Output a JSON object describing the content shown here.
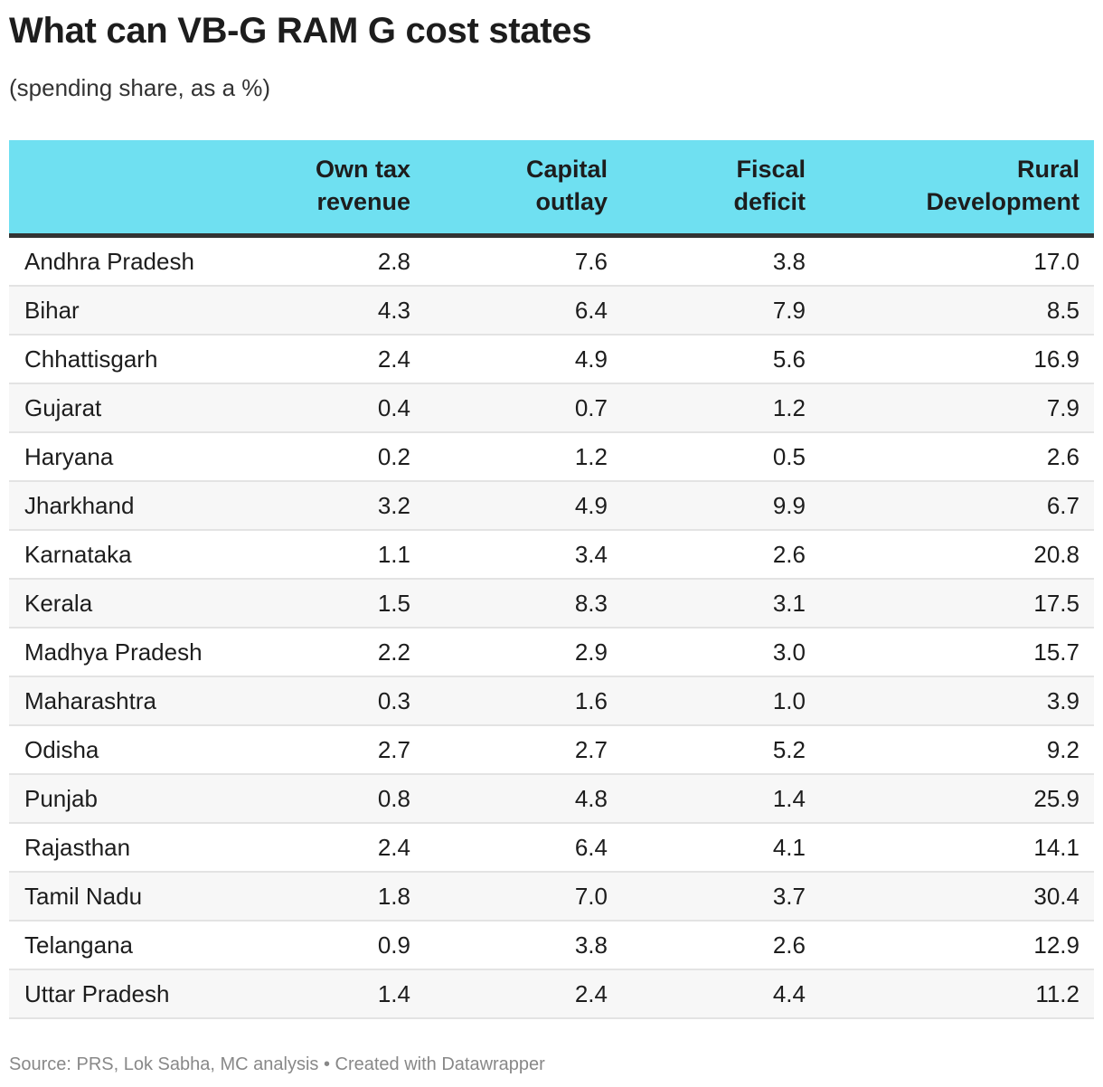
{
  "header": {
    "title": "What can VB-G RAM G cost states",
    "subtitle": "(spending share, as a %)"
  },
  "table": {
    "columns": [
      [
        "Own tax",
        "revenue"
      ],
      [
        "Capital",
        "outlay"
      ],
      [
        "Fiscal",
        "deficit"
      ],
      [
        "Rural",
        "Development"
      ]
    ],
    "rows": [
      [
        "Andhra Pradesh",
        "2.8",
        "7.6",
        "3.8",
        "17.0"
      ],
      [
        "Bihar",
        "4.3",
        "6.4",
        "7.9",
        "8.5"
      ],
      [
        "Chhattisgarh",
        "2.4",
        "4.9",
        "5.6",
        "16.9"
      ],
      [
        "Gujarat",
        "0.4",
        "0.7",
        "1.2",
        "7.9"
      ],
      [
        "Haryana",
        "0.2",
        "1.2",
        "0.5",
        "2.6"
      ],
      [
        "Jharkhand",
        "3.2",
        "4.9",
        "9.9",
        "6.7"
      ],
      [
        "Karnataka",
        "1.1",
        "3.4",
        "2.6",
        "20.8"
      ],
      [
        "Kerala",
        "1.5",
        "8.3",
        "3.1",
        "17.5"
      ],
      [
        "Madhya Pradesh",
        "2.2",
        "2.9",
        "3.0",
        "15.7"
      ],
      [
        "Maharashtra",
        "0.3",
        "1.6",
        "1.0",
        "3.9"
      ],
      [
        "Odisha",
        "2.7",
        "2.7",
        "5.2",
        "9.2"
      ],
      [
        "Punjab",
        "0.8",
        "4.8",
        "1.4",
        "25.9"
      ],
      [
        "Rajasthan",
        "2.4",
        "6.4",
        "4.1",
        "14.1"
      ],
      [
        "Tamil Nadu",
        "1.8",
        "7.0",
        "3.7",
        "30.4"
      ],
      [
        "Telangana",
        "0.9",
        "3.8",
        "2.6",
        "12.9"
      ],
      [
        "Uttar Pradesh",
        "1.4",
        "2.4",
        "4.4",
        "11.2"
      ]
    ]
  },
  "footer": {
    "source": "Source: PRS, Lok Sabha, MC analysis • Created with Datawrapper"
  }
}
